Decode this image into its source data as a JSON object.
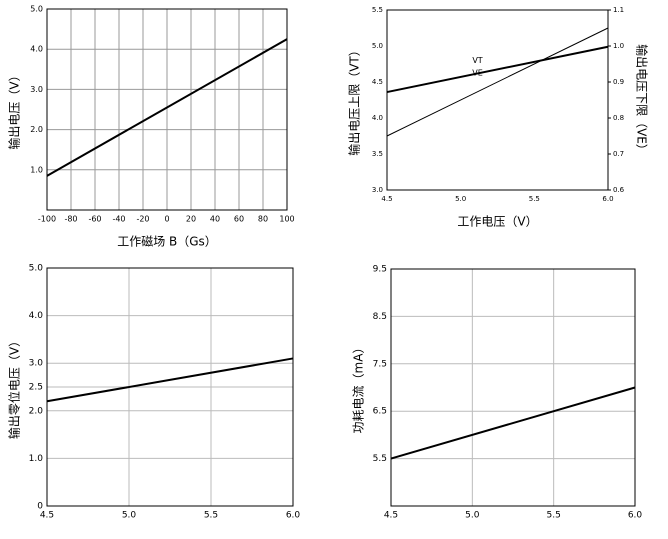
{
  "chart_data": [
    {
      "type": "line",
      "x": [
        -100,
        100
      ],
      "series": [
        {
          "color": "#000000",
          "values": [
            0.85,
            4.25
          ]
        }
      ],
      "xlim": [
        -100,
        100
      ],
      "xticks": [
        -100,
        -80,
        -60,
        -40,
        -20,
        0,
        20,
        40,
        60,
        80,
        100
      ],
      "ylim": [
        0,
        5
      ],
      "yticks": [
        {
          "value": 1,
          "label": "1.0"
        },
        {
          "value": 2,
          "label": "2.0"
        },
        {
          "value": 3,
          "label": "3.0"
        },
        {
          "value": 4,
          "label": "4.0"
        },
        {
          "value": 5,
          "label": "5.0"
        }
      ],
      "grid": true,
      "xlabel": "工作磁场 B（Gs）",
      "ylabel": "输出电压（V）"
    },
    {
      "type": "line",
      "x": [
        4.5,
        6.0
      ],
      "series": [
        {
          "name": "VT",
          "color": "#000000",
          "values": [
            4.36,
            4.99
          ]
        },
        {
          "name": "VE",
          "color": "#000000",
          "axis": "y2",
          "values": [
            0.75,
            1.05
          ]
        }
      ],
      "xlim": [
        4.5,
        6.0
      ],
      "xticks": [
        4.5,
        {
          "value": 5,
          "label": "5.0"
        },
        5.5,
        {
          "value": 6,
          "label": "6.0"
        }
      ],
      "ylim": [
        3.0,
        5.5
      ],
      "yticks": [
        {
          "value": 3,
          "label": "3.0"
        },
        3.5,
        {
          "value": 4,
          "label": "4.0"
        },
        4.5,
        {
          "value": 5,
          "label": "5.0"
        },
        5.5
      ],
      "y2lim": [
        0.6,
        1.1
      ],
      "y2ticks": [
        0.6,
        0.7,
        0.8,
        0.9,
        {
          "value": 1,
          "label": "1.0"
        },
        1.1
      ],
      "grid": false,
      "xlabel": "工作电压（V）",
      "ylabel": "输出电压上限（VT）",
      "y2label": "输出电压下限（VE）"
    },
    {
      "type": "line",
      "x": [
        4.5,
        6.0
      ],
      "series": [
        {
          "color": "#000000",
          "values": [
            2.2,
            3.1
          ]
        }
      ],
      "xlim": [
        4.5,
        6.0
      ],
      "xticks": [
        4.5,
        {
          "value": 5,
          "label": "5.0"
        },
        5.5,
        {
          "value": 6,
          "label": "6.0"
        }
      ],
      "ylim": [
        0,
        5
      ],
      "yticks": [
        0,
        {
          "value": 1,
          "label": "1.0"
        },
        {
          "value": 2,
          "label": "2.0"
        },
        2.5,
        {
          "value": 3,
          "label": "3.0"
        },
        {
          "value": 4,
          "label": "4.0"
        },
        {
          "value": 5,
          "label": "5.0"
        }
      ],
      "grid": true,
      "ylabel": "输出零位电压（V）"
    },
    {
      "type": "line",
      "x": [
        4.5,
        6.0
      ],
      "series": [
        {
          "color": "#000000",
          "values": [
            5.5,
            7.0
          ]
        }
      ],
      "xlim": [
        4.5,
        6.0
      ],
      "xticks": [
        4.5,
        {
          "value": 5,
          "label": "5.0"
        },
        5.5,
        {
          "value": 6,
          "label": "6.0"
        }
      ],
      "ylim": [
        4.5,
        9.5
      ],
      "yticks": [
        5.5,
        6.5,
        7.5,
        8.5,
        9.5
      ],
      "grid": true,
      "ylabel": "功耗电流（mA）"
    }
  ]
}
